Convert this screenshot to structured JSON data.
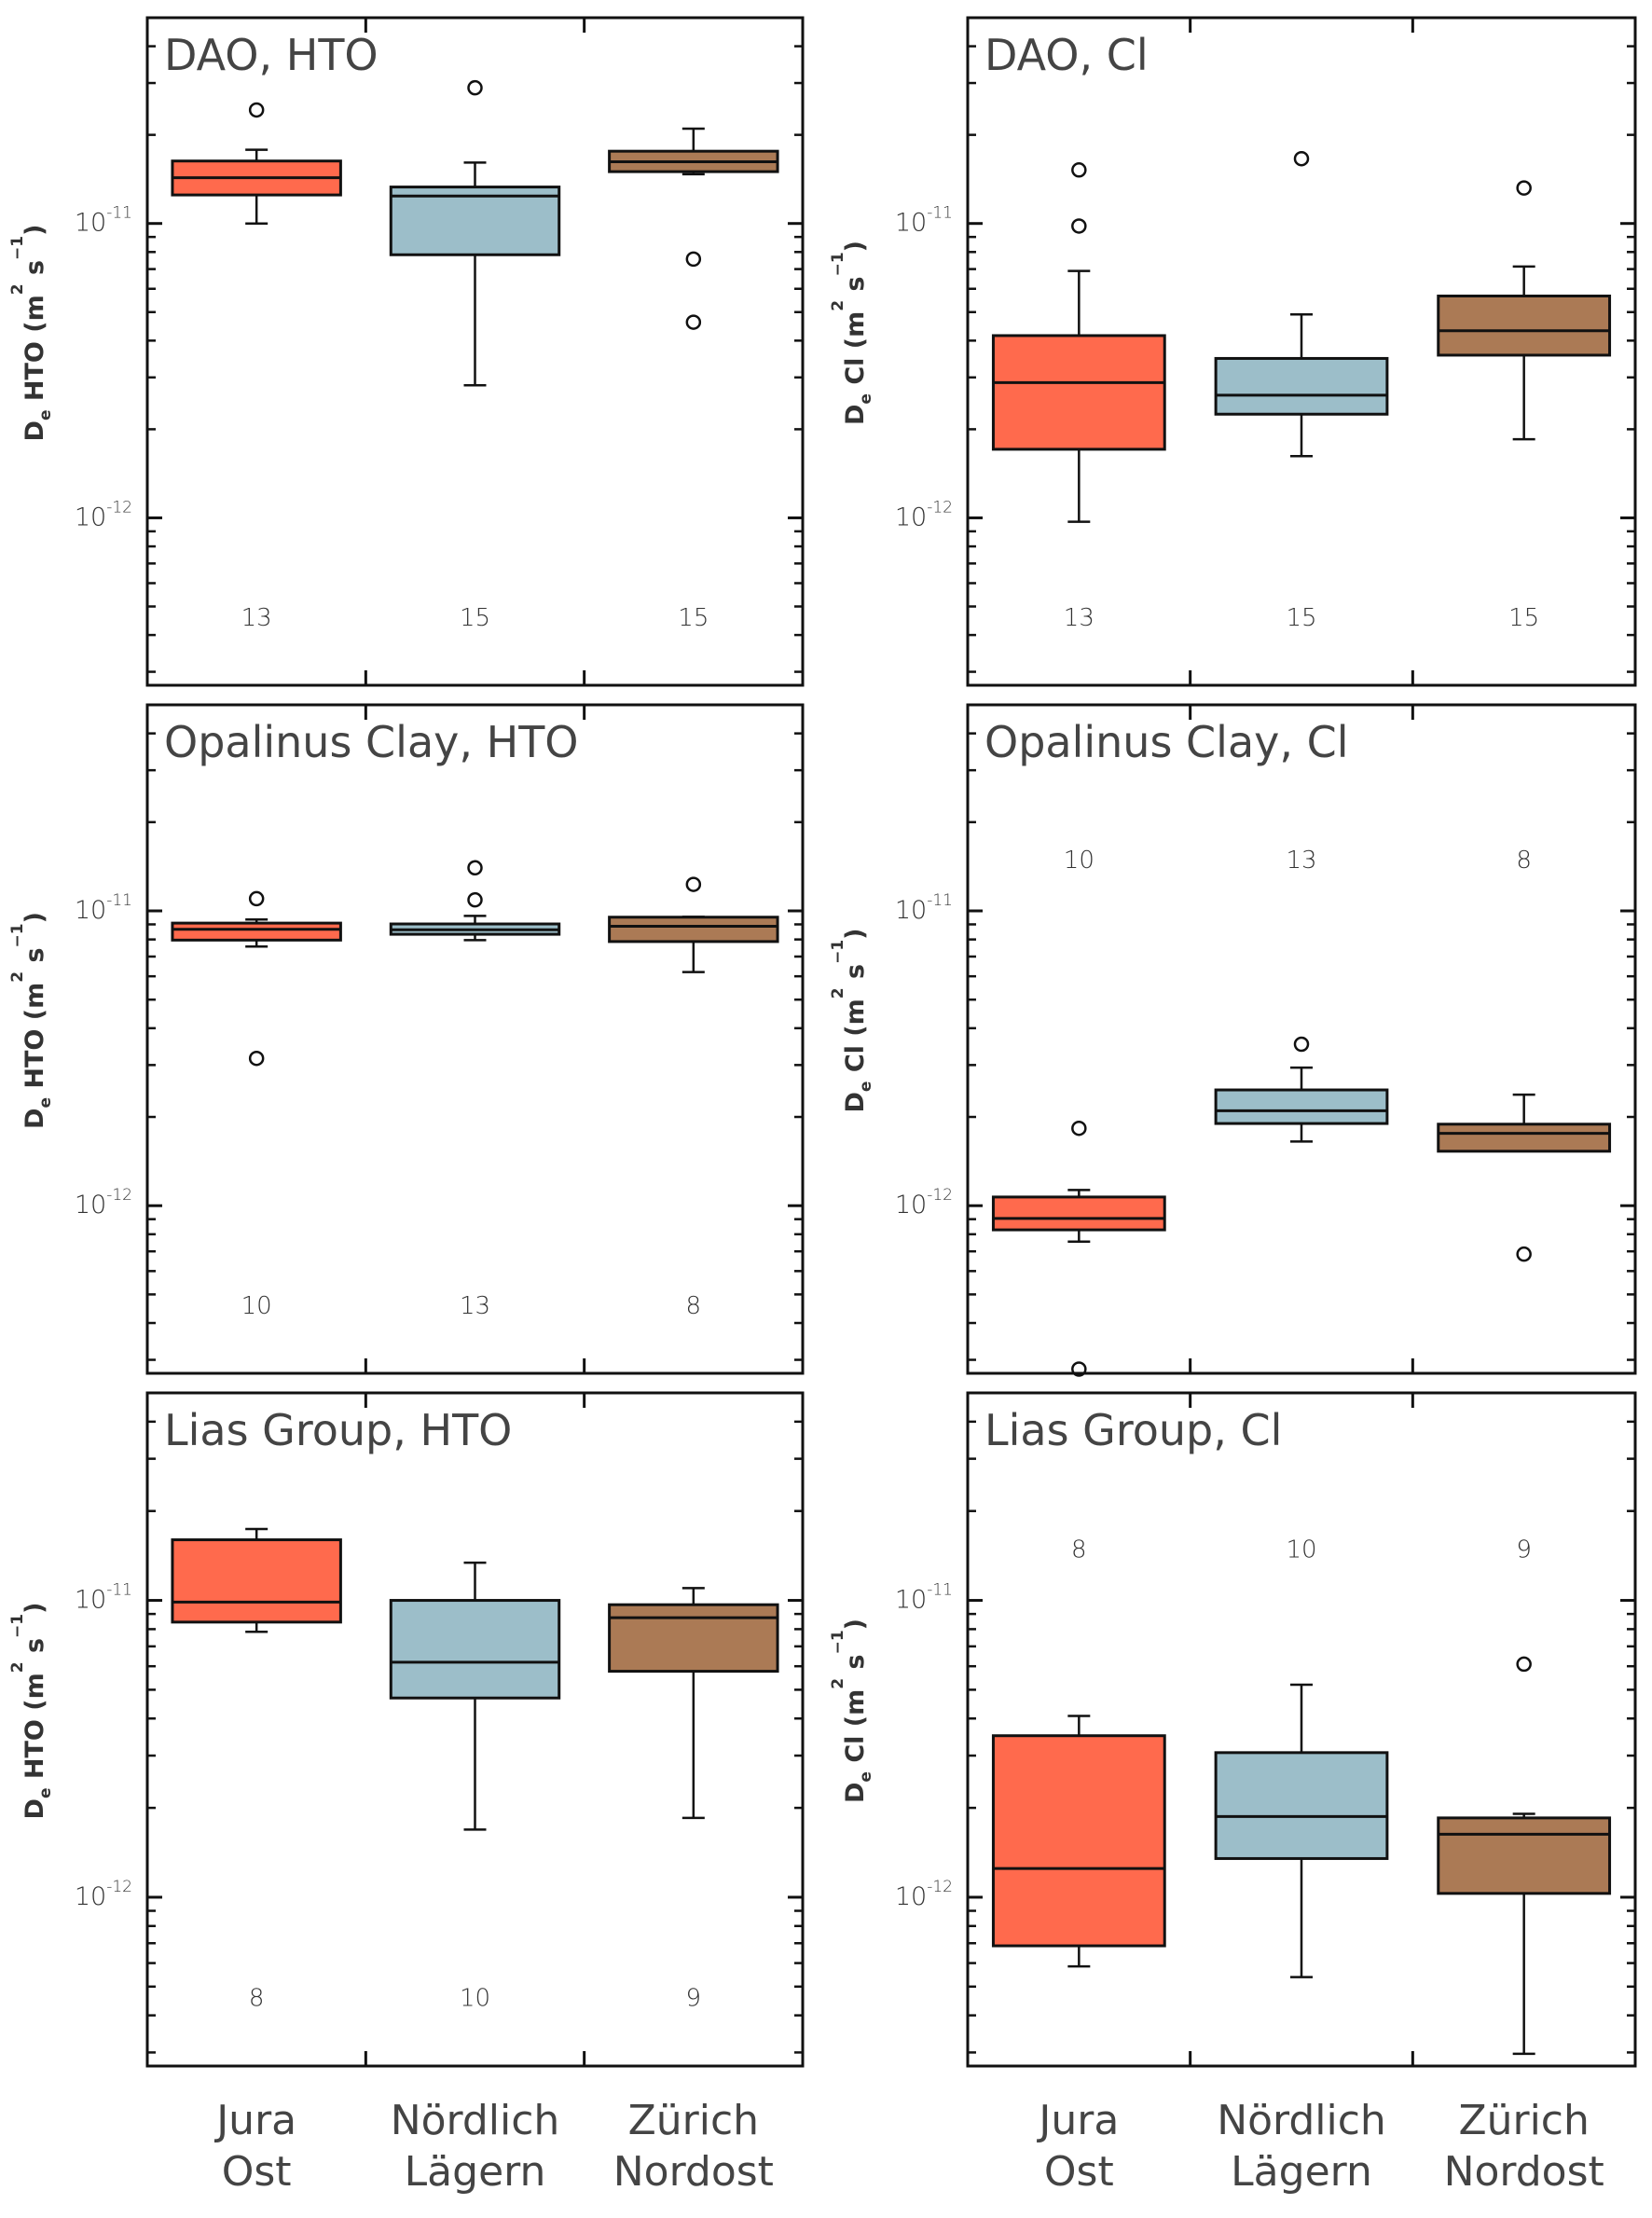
{
  "chart_data": {
    "type": "boxplot",
    "layout": "3 rows x 2 columns",
    "scale": "log",
    "categories": [
      "Jura Ost",
      "Nördlich Lägern",
      "Zürich Nordost"
    ],
    "category_lines": [
      [
        "Jura",
        "Ost"
      ],
      [
        "Nördlich",
        "Lägern"
      ],
      [
        "Zürich",
        "Nordost"
      ]
    ],
    "colors": {
      "Jura Ost": "#FF6A4D",
      "Nördlich Lägern": "#9CBEC9",
      "Zürich Nordost": "#AB7A55"
    },
    "ylim": [
      2.7e-13,
      5e-11
    ],
    "ytick_labels": [
      {
        "value": 1e-11,
        "base": "10",
        "exp": "-11"
      },
      {
        "value": 1e-12,
        "base": "10",
        "exp": "-12"
      }
    ],
    "panels": [
      {
        "title": "DAO, HTO",
        "ylabel": {
          "main": "D",
          "sub": "e",
          "rest": " HTO (m",
          "sup1": "2",
          "mid": " s",
          "sup2": "−1",
          "end": ")"
        },
        "n_label_position": 4.6e-13,
        "boxes": [
          {
            "category": "Jura Ost",
            "n": "13",
            "whisker_low": 1e-11,
            "q1": 1.25e-11,
            "median": 1.43e-11,
            "q3": 1.63e-11,
            "whisker_high": 1.78e-11,
            "outliers": [
              2.43e-11
            ]
          },
          {
            "category": "Nördlich Lägern",
            "n": "15",
            "whisker_low": 2.82e-12,
            "q1": 7.83e-12,
            "median": 1.24e-11,
            "q3": 1.33e-11,
            "whisker_high": 1.61e-11,
            "outliers": [
              2.89e-11
            ]
          },
          {
            "category": "Zürich Nordost",
            "n": "15",
            "whisker_low": 1.47e-11,
            "q1": 1.5e-11,
            "median": 1.62e-11,
            "q3": 1.76e-11,
            "whisker_high": 2.1e-11,
            "outliers": [
              7.57e-12,
              4.62e-12
            ]
          }
        ]
      },
      {
        "title": "DAO, Cl",
        "ylabel": {
          "main": "D",
          "sub": "e",
          "rest": " Cl (m",
          "sup1": "2",
          "mid": " s",
          "sup2": "−1",
          "end": ")"
        },
        "n_label_position": 4.6e-13,
        "boxes": [
          {
            "category": "Jura Ost",
            "n": "13",
            "whisker_low": 9.7e-13,
            "q1": 1.71e-12,
            "median": 2.88e-12,
            "q3": 4.16e-12,
            "whisker_high": 6.9e-12,
            "outliers": [
              1.52e-11,
              9.8e-12
            ]
          },
          {
            "category": "Nördlich Lägern",
            "n": "15",
            "whisker_low": 1.62e-12,
            "q1": 2.25e-12,
            "median": 2.61e-12,
            "q3": 3.48e-12,
            "whisker_high": 4.91e-12,
            "outliers": [
              1.66e-11
            ]
          },
          {
            "category": "Zürich Nordost",
            "n": "15",
            "whisker_low": 1.85e-12,
            "q1": 3.57e-12,
            "median": 4.32e-12,
            "q3": 5.67e-12,
            "whisker_high": 7.14e-12,
            "outliers": [
              1.32e-11
            ]
          }
        ]
      },
      {
        "title": "Opalinus Clay, HTO",
        "ylabel": {
          "main": "D",
          "sub": "e",
          "rest": " HTO (m",
          "sup1": "2",
          "mid": " s",
          "sup2": "−1",
          "end": ")"
        },
        "n_label_position": 4.6e-13,
        "boxes": [
          {
            "category": "Jura Ost",
            "n": "10",
            "whisker_low": 7.57e-12,
            "q1": 7.96e-12,
            "median": 8.66e-12,
            "q3": 9.09e-12,
            "whisker_high": 9.35e-12,
            "outliers": [
              1.1e-11,
              3.16e-12
            ]
          },
          {
            "category": "Nördlich Lägern",
            "n": "13",
            "whisker_low": 7.96e-12,
            "q1": 8.33e-12,
            "median": 8.63e-12,
            "q3": 9.03e-12,
            "whisker_high": 9.62e-12,
            "outliers": [
              1.4e-11,
              1.09e-11
            ]
          },
          {
            "category": "Zürich Nordost",
            "n": "8",
            "whisker_low": 6.2e-12,
            "q1": 7.87e-12,
            "median": 8.87e-12,
            "q3": 9.52e-12,
            "whisker_high": 9.55e-12,
            "outliers": [
              1.23e-11
            ]
          }
        ]
      },
      {
        "title": "Opalinus Clay, Cl",
        "ylabel": {
          "main": "D",
          "sub": "e",
          "rest": " Cl (m",
          "sup1": "2",
          "mid": " s",
          "sup2": "−1",
          "end": ")"
        },
        "n_label_position": 1.49e-11,
        "boxes": [
          {
            "category": "Jura Ost",
            "n": "10",
            "whisker_low": 7.55e-13,
            "q1": 8.28e-13,
            "median": 9.05e-13,
            "q3": 1.07e-12,
            "whisker_high": 1.13e-12,
            "outliers": [
              1.83e-12,
              2.79e-13
            ]
          },
          {
            "category": "Nördlich Lägern",
            "n": "13",
            "whisker_low": 1.65e-12,
            "q1": 1.9e-12,
            "median": 2.1e-12,
            "q3": 2.47e-12,
            "whisker_high": 2.94e-12,
            "outliers": [
              3.53e-12
            ]
          },
          {
            "category": "Zürich Nordost",
            "n": "8",
            "whisker_low": 1.53e-12,
            "q1": 1.53e-12,
            "median": 1.76e-12,
            "q3": 1.89e-12,
            "whisker_high": 2.38e-12,
            "outliers": [
              6.85e-13
            ]
          }
        ]
      },
      {
        "title": "Lias Group, HTO",
        "ylabel": {
          "main": "D",
          "sub": "e",
          "rest": " HTO (m",
          "sup1": "2",
          "mid": " s",
          "sup2": "−1",
          "end": ")"
        },
        "n_label_position": 4.6e-13,
        "boxes": [
          {
            "category": "Jura Ost",
            "n": "8",
            "whisker_low": 7.84e-12,
            "q1": 8.45e-12,
            "median": 9.87e-12,
            "q3": 1.6e-11,
            "whisker_high": 1.74e-11,
            "outliers": []
          },
          {
            "category": "Nördlich Lägern",
            "n": "10",
            "whisker_low": 1.69e-12,
            "q1": 4.69e-12,
            "median": 6.19e-12,
            "q3": 1e-11,
            "whisker_high": 1.34e-11,
            "outliers": []
          },
          {
            "category": "Zürich Nordost",
            "n": "9",
            "whisker_low": 1.85e-12,
            "q1": 5.77e-12,
            "median": 8.74e-12,
            "q3": 9.67e-12,
            "whisker_high": 1.1e-11,
            "outliers": []
          }
        ]
      },
      {
        "title": "Lias Group, Cl",
        "ylabel": {
          "main": "D",
          "sub": "e",
          "rest": " Cl (m",
          "sup1": "2",
          "mid": " s",
          "sup2": "−1",
          "end": ")"
        },
        "n_label_position": 1.49e-11,
        "boxes": [
          {
            "category": "Jura Ost",
            "n": "8",
            "whisker_low": 5.85e-13,
            "q1": 6.86e-13,
            "median": 1.25e-12,
            "q3": 3.5e-12,
            "whisker_high": 4.08e-12,
            "outliers": []
          },
          {
            "category": "Nördlich Lägern",
            "n": "10",
            "whisker_low": 5.38e-13,
            "q1": 1.35e-12,
            "median": 1.87e-12,
            "q3": 3.07e-12,
            "whisker_high": 5.2e-12,
            "outliers": []
          },
          {
            "category": "Zürich Nordost",
            "n": "9",
            "whisker_low": 2.97e-13,
            "q1": 1.03e-12,
            "median": 1.63e-12,
            "q3": 1.85e-12,
            "whisker_high": 1.91e-12,
            "outliers": [
              6.1e-12
            ]
          }
        ]
      }
    ]
  }
}
